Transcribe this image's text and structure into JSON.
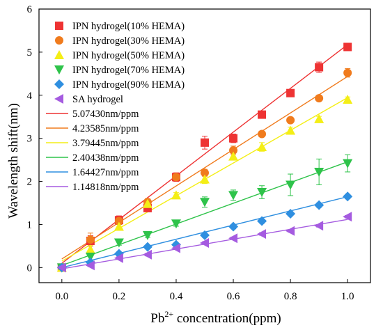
{
  "chart_data": {
    "type": "scatter",
    "title": "",
    "xlabel_base": "Pb",
    "xlabel_sup": "2+",
    "xlabel_rest": " concentration(ppm)",
    "ylabel": "Wavelength shift(nm)",
    "xlim": [
      -0.08,
      1.08
    ],
    "ylim": [
      -0.35,
      6
    ],
    "xticks": [
      0.0,
      0.2,
      0.4,
      0.6,
      0.8,
      1.0
    ],
    "xtick_labels": [
      "0.0",
      "0.2",
      "0.4",
      "0.6",
      "0.8",
      "1.0"
    ],
    "yticks": [
      0,
      1,
      2,
      3,
      4,
      5,
      6
    ],
    "ytick_labels": [
      "0",
      "1",
      "2",
      "3",
      "4",
      "5",
      "6"
    ],
    "legend_position": "top-left",
    "x": [
      0.0,
      0.1,
      0.2,
      0.3,
      0.4,
      0.5,
      0.6,
      0.7,
      0.8,
      0.9,
      1.0
    ],
    "series": [
      {
        "name": "IPN hydrogel(10% HEMA)",
        "marker": "square",
        "color": "#ee3333",
        "values": [
          0.0,
          0.62,
          1.1,
          1.38,
          2.1,
          2.9,
          3.0,
          3.55,
          4.05,
          4.65,
          5.12
        ],
        "errors": [
          0.03,
          0.12,
          0.1,
          0.08,
          0.1,
          0.15,
          0.1,
          0.06,
          0.06,
          0.12,
          0.08
        ]
      },
      {
        "name": "IPN hydrogel(30% HEMA)",
        "marker": "circle",
        "color": "#f07b1d",
        "values": [
          0.0,
          0.65,
          1.08,
          1.52,
          2.1,
          2.2,
          2.72,
          3.1,
          3.42,
          3.93,
          4.52
        ],
        "errors": [
          0.03,
          0.15,
          0.08,
          0.08,
          0.08,
          0.08,
          0.1,
          0.06,
          0.06,
          0.05,
          0.1
        ]
      },
      {
        "name": "IPN hydrogel(50% HEMA)",
        "marker": "triangle-up",
        "color": "#f4ee16",
        "values": [
          0.0,
          0.42,
          0.95,
          1.48,
          1.68,
          2.05,
          2.58,
          2.8,
          3.18,
          3.45,
          3.9
        ],
        "errors": [
          0.03,
          0.1,
          0.08,
          0.08,
          0.06,
          0.1,
          0.08,
          0.1,
          0.08,
          0.06,
          0.06
        ]
      },
      {
        "name": "IPN hydrogel(70% HEMA)",
        "marker": "triangle-down",
        "color": "#2ec34a",
        "values": [
          0.0,
          0.25,
          0.58,
          0.75,
          1.02,
          1.52,
          1.68,
          1.75,
          1.92,
          2.22,
          2.42
        ],
        "errors": [
          0.03,
          0.08,
          0.06,
          0.05,
          0.06,
          0.12,
          0.12,
          0.15,
          0.25,
          0.3,
          0.2
        ]
      },
      {
        "name": "IPN hydrogel(90% HEMA)",
        "marker": "diamond",
        "color": "#2f8fe0",
        "values": [
          0.0,
          0.12,
          0.32,
          0.48,
          0.53,
          0.75,
          0.95,
          1.08,
          1.25,
          1.45,
          1.65
        ],
        "errors": [
          0.03,
          0.04,
          0.04,
          0.04,
          0.04,
          0.05,
          0.05,
          0.05,
          0.05,
          0.05,
          0.05
        ]
      },
      {
        "name": "SA hydrogel",
        "marker": "triangle-left",
        "color": "#a55be0",
        "values": [
          0.0,
          0.05,
          0.22,
          0.3,
          0.45,
          0.57,
          0.68,
          0.78,
          0.85,
          0.97,
          1.18
        ],
        "errors": [
          0.03,
          0.03,
          0.03,
          0.03,
          0.03,
          0.03,
          0.03,
          0.03,
          0.03,
          0.03,
          0.03
        ]
      }
    ],
    "fits": [
      {
        "name": "5.07430nm/ppm",
        "slope": 5.0743,
        "intercept": 0.1,
        "color": "#ee3333"
      },
      {
        "name": "4.23585nm/ppm",
        "slope": 4.23585,
        "intercept": 0.2,
        "color": "#f07b1d"
      },
      {
        "name": "3.79445nm/ppm",
        "slope": 3.79445,
        "intercept": 0.15,
        "color": "#f4ee16"
      },
      {
        "name": "2.40438nm/ppm",
        "slope": 2.40438,
        "intercept": 0.05,
        "color": "#2ec34a"
      },
      {
        "name": "1.64427nm/ppm",
        "slope": 1.64427,
        "intercept": 0.0,
        "color": "#2f8fe0"
      },
      {
        "name": "1.14818nm/ppm",
        "slope": 1.14818,
        "intercept": -0.03,
        "color": "#a55be0"
      }
    ]
  }
}
